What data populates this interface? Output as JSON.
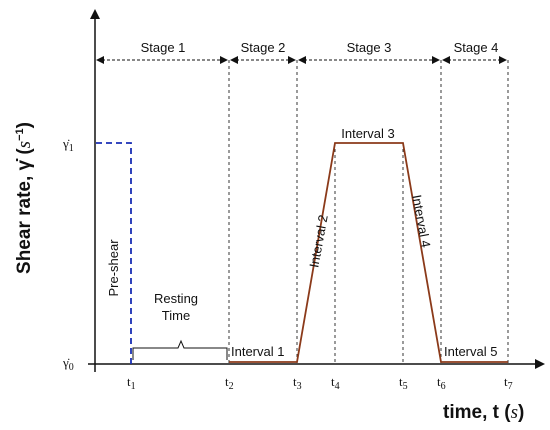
{
  "stages": [
    "Stage 1",
    "Stage 2",
    "Stage 3",
    "Stage 4"
  ],
  "intervals": [
    "Interval 1",
    "Interval 2",
    "Interval 3",
    "Interval 4",
    "Interval 5"
  ],
  "annotations": {
    "pre_shear": "Pre-shear",
    "resting_line1": "Resting",
    "resting_line2": "Time"
  },
  "y_ticks": [
    {
      "base": "γ̇",
      "sub": "1"
    },
    {
      "base": "γ̇",
      "sub": "0"
    }
  ],
  "x_ticks": [
    {
      "base": "t",
      "sub": "1"
    },
    {
      "base": "t",
      "sub": "2"
    },
    {
      "base": "t",
      "sub": "3"
    },
    {
      "base": "t",
      "sub": "4"
    },
    {
      "base": "t",
      "sub": "5"
    },
    {
      "base": "t",
      "sub": "6"
    },
    {
      "base": "t",
      "sub": "7"
    }
  ],
  "axes": {
    "y_title_main": "Shear rate, γ̇ (",
    "y_title_var": "s",
    "y_title_sup": "−1",
    "y_title_end": ")",
    "x_title_main": "time, t (",
    "x_title_var": "s",
    "x_title_end": ")"
  },
  "colors": {
    "profile": "#8B3A1A",
    "pre_shear": "#1a2fb5",
    "axis": "#111111"
  }
}
